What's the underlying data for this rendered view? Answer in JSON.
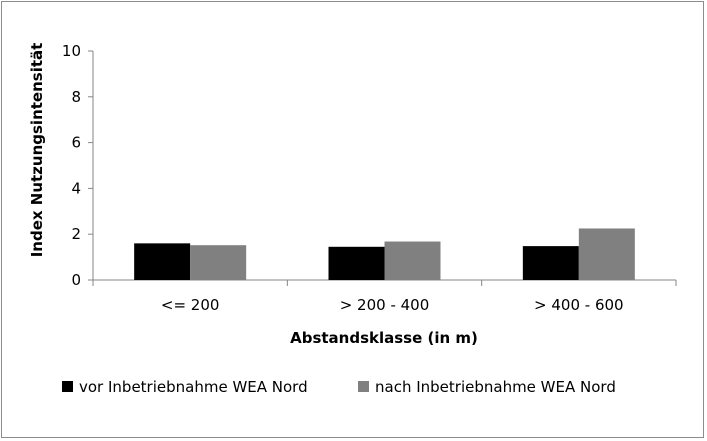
{
  "chart_data": {
    "type": "bar",
    "title": "",
    "xlabel": "Abstandsklasse (in m)",
    "ylabel": "Index Nutzungsintensität",
    "categories": [
      "<= 200",
      "> 200 - 400",
      "> 400 - 600"
    ],
    "series": [
      {
        "name": "vor Inbetriebnahme WEA Nord",
        "values": [
          1.6,
          1.45,
          1.48
        ],
        "color": "#000000"
      },
      {
        "name": "nach Inbetriebnahme WEA Nord",
        "values": [
          1.52,
          1.68,
          2.25
        ],
        "color": "#808080"
      }
    ],
    "ylim": [
      0,
      10
    ],
    "yticks": [
      0,
      2,
      4,
      6,
      8,
      10
    ],
    "grid": false,
    "legend_position": "bottom"
  }
}
